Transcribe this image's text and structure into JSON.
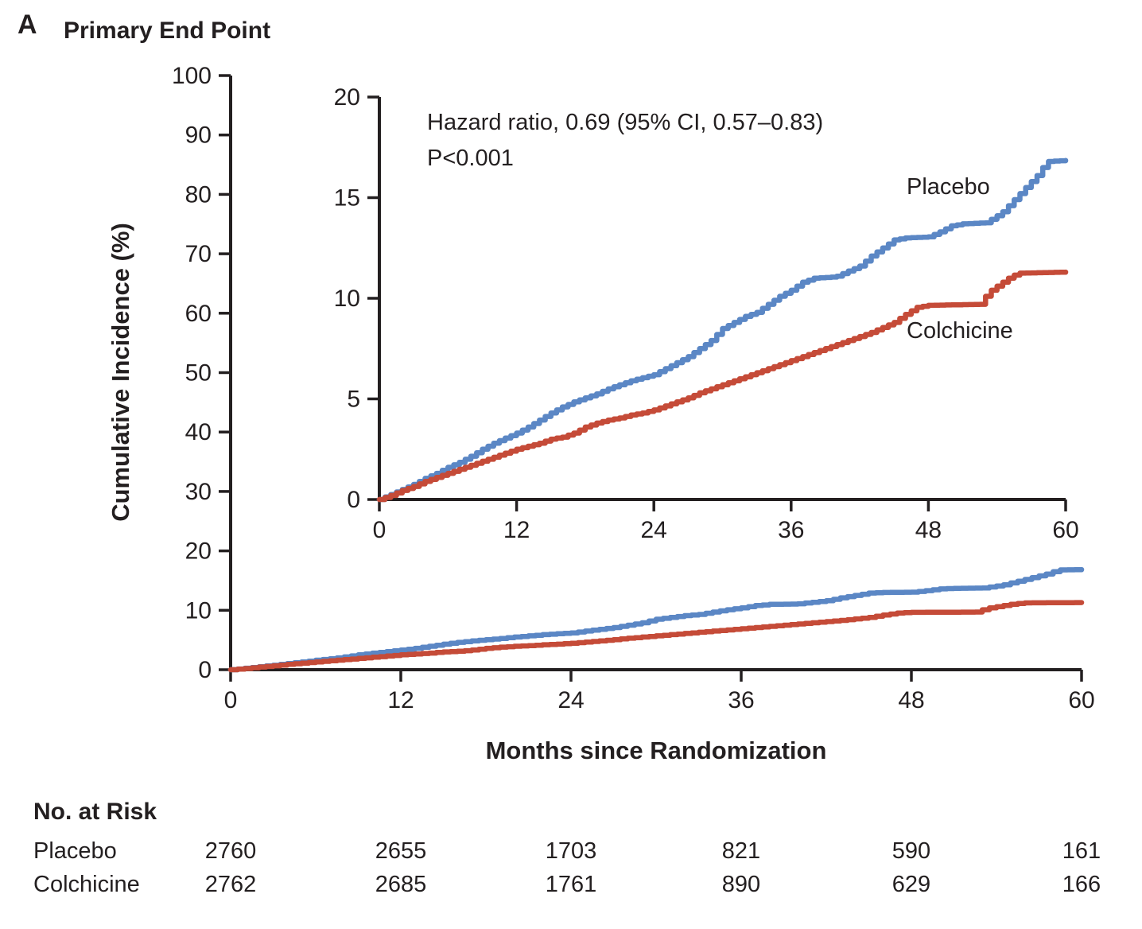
{
  "figure": {
    "panel": "A",
    "title": "Primary End Point"
  },
  "chart_data": {
    "type": "line",
    "subtype": "kaplan-meier-cumulative-incidence",
    "title": "Primary End Point",
    "panel": "A",
    "x_label": "Months since Randomization",
    "y_label": "Cumulative Incidence (%)",
    "x_ticks": [
      0,
      12,
      24,
      36,
      48,
      60
    ],
    "xlim": [
      0,
      60
    ],
    "grid": false,
    "annotation": [
      "Hazard ratio, 0.69 (95% CI, 0.57–0.83)",
      "P<0.001"
    ],
    "views": [
      {
        "id": "main",
        "y_ticks": [
          0,
          10,
          20,
          30,
          40,
          50,
          60,
          70,
          80,
          90,
          100
        ],
        "ylim": [
          0,
          100
        ]
      },
      {
        "id": "inset",
        "y_ticks": [
          0,
          5,
          10,
          15,
          20
        ],
        "ylim": [
          0,
          20
        ]
      }
    ],
    "series": [
      {
        "name": "Placebo",
        "color": "#5B87C5",
        "points": [
          [
            0,
            0
          ],
          [
            1,
            0.25
          ],
          [
            2,
            0.5
          ],
          [
            3,
            0.75
          ],
          [
            4,
            1.05
          ],
          [
            5,
            1.3
          ],
          [
            6,
            1.6
          ],
          [
            7,
            1.85
          ],
          [
            8,
            2.15
          ],
          [
            9,
            2.5
          ],
          [
            10,
            2.8
          ],
          [
            11,
            3.05
          ],
          [
            12,
            3.3
          ],
          [
            13,
            3.6
          ],
          [
            14,
            3.95
          ],
          [
            15,
            4.3
          ],
          [
            16,
            4.6
          ],
          [
            17,
            4.85
          ],
          [
            18,
            5.05
          ],
          [
            19,
            5.25
          ],
          [
            20,
            5.5
          ],
          [
            21,
            5.7
          ],
          [
            22,
            5.9
          ],
          [
            23,
            6.05
          ],
          [
            24,
            6.2
          ],
          [
            25,
            6.5
          ],
          [
            26,
            6.8
          ],
          [
            27,
            7.1
          ],
          [
            28,
            7.5
          ],
          [
            29,
            7.9
          ],
          [
            30,
            8.5
          ],
          [
            31,
            8.8
          ],
          [
            32,
            9.1
          ],
          [
            33,
            9.3
          ],
          [
            34,
            9.7
          ],
          [
            35,
            10.1
          ],
          [
            36,
            10.4
          ],
          [
            37,
            10.8
          ],
          [
            38,
            11.0
          ],
          [
            39.5,
            11.05
          ],
          [
            40,
            11.1
          ],
          [
            41,
            11.35
          ],
          [
            42,
            11.6
          ],
          [
            43,
            12.1
          ],
          [
            44,
            12.5
          ],
          [
            45,
            12.9
          ],
          [
            46,
            13.0
          ],
          [
            48,
            13.05
          ],
          [
            49,
            13.3
          ],
          [
            50,
            13.6
          ],
          [
            51,
            13.7
          ],
          [
            53,
            13.75
          ],
          [
            54,
            14.1
          ],
          [
            54.5,
            14.3
          ],
          [
            55,
            14.6
          ],
          [
            55.5,
            14.9
          ],
          [
            56,
            15.2
          ],
          [
            56.5,
            15.5
          ],
          [
            57,
            15.8
          ],
          [
            57.5,
            16.1
          ],
          [
            58,
            16.5
          ],
          [
            58.5,
            16.8
          ],
          [
            60,
            16.85
          ]
        ]
      },
      {
        "name": "Colchicine",
        "color": "#C54B38",
        "points": [
          [
            0,
            0
          ],
          [
            1,
            0.2
          ],
          [
            2,
            0.45
          ],
          [
            3,
            0.65
          ],
          [
            4,
            0.9
          ],
          [
            5,
            1.1
          ],
          [
            6,
            1.3
          ],
          [
            7,
            1.5
          ],
          [
            8,
            1.7
          ],
          [
            9,
            1.9
          ],
          [
            10,
            2.1
          ],
          [
            11,
            2.3
          ],
          [
            12,
            2.5
          ],
          [
            13,
            2.65
          ],
          [
            14,
            2.8
          ],
          [
            15,
            3.0
          ],
          [
            16,
            3.1
          ],
          [
            17,
            3.3
          ],
          [
            18,
            3.6
          ],
          [
            19,
            3.8
          ],
          [
            20,
            3.95
          ],
          [
            21,
            4.05
          ],
          [
            22,
            4.2
          ],
          [
            23,
            4.3
          ],
          [
            24,
            4.45
          ],
          [
            25,
            4.65
          ],
          [
            26,
            4.85
          ],
          [
            27,
            5.05
          ],
          [
            28,
            5.3
          ],
          [
            29,
            5.5
          ],
          [
            30,
            5.7
          ],
          [
            31,
            5.9
          ],
          [
            32,
            6.1
          ],
          [
            33,
            6.3
          ],
          [
            34,
            6.5
          ],
          [
            35,
            6.7
          ],
          [
            36,
            6.9
          ],
          [
            37,
            7.1
          ],
          [
            38,
            7.3
          ],
          [
            39,
            7.5
          ],
          [
            40,
            7.7
          ],
          [
            41,
            7.9
          ],
          [
            42,
            8.1
          ],
          [
            43,
            8.3
          ],
          [
            44,
            8.55
          ],
          [
            45,
            8.8
          ],
          [
            46,
            9.2
          ],
          [
            47,
            9.55
          ],
          [
            48,
            9.65
          ],
          [
            52.5,
            9.7
          ],
          [
            53,
            10.1
          ],
          [
            53.5,
            10.4
          ],
          [
            54,
            10.6
          ],
          [
            54.5,
            10.8
          ],
          [
            55,
            11.0
          ],
          [
            55.5,
            11.15
          ],
          [
            56,
            11.25
          ],
          [
            60,
            11.3
          ]
        ]
      }
    ]
  },
  "no_at_risk": {
    "heading": "No. at Risk",
    "timepoints": [
      0,
      12,
      24,
      36,
      48,
      60
    ],
    "rows": [
      {
        "label": "Placebo",
        "values": [
          "2760",
          "2655",
          "1703",
          "821",
          "590",
          "161"
        ]
      },
      {
        "label": "Colchicine",
        "values": [
          "2762",
          "2685",
          "1761",
          "890",
          "629",
          "166"
        ]
      }
    ]
  },
  "colors": {
    "placebo": "#5B87C5",
    "colchicine": "#C54B38",
    "axis": "#231F20",
    "background": "#FFFFFF"
  }
}
